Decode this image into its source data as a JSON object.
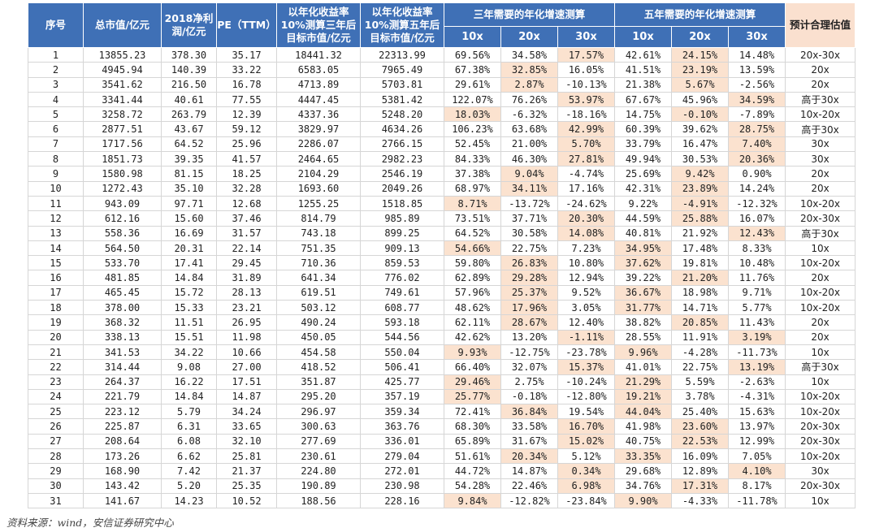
{
  "headers": {
    "seq": "序号",
    "mcap": "总市值/亿元",
    "profit": "2018净利润/亿元",
    "pe": "PE（TTM）",
    "target3": "以年化收益率10%测算三年后目标市值/亿元",
    "target5": "以年化收益率10%测算五年后目标市值/亿元",
    "group3": "三年需要的年化增速测算",
    "group5": "五年需要的年化增速测算",
    "sub": [
      "10x",
      "20x",
      "30x",
      "10x",
      "20x",
      "30x"
    ],
    "estimate": "预计合理估值"
  },
  "rows": [
    [
      "1",
      "13855.23",
      "378.30",
      "35.17",
      "18441.32",
      "22313.99",
      "69.56%",
      "34.58%",
      "17.57%",
      "42.61%",
      "24.15%",
      "14.48%",
      "20x-30x"
    ],
    [
      "2",
      "4945.94",
      "140.39",
      "33.22",
      "6583.05",
      "7965.49",
      "67.38%",
      "32.85%",
      "16.05%",
      "41.51%",
      "23.19%",
      "13.59%",
      "20x"
    ],
    [
      "3",
      "3541.62",
      "216.50",
      "16.78",
      "4713.89",
      "5703.81",
      "29.61%",
      "2.87%",
      "-10.13%",
      "21.38%",
      "5.67%",
      "-2.56%",
      "20x"
    ],
    [
      "4",
      "3341.44",
      "40.61",
      "77.55",
      "4447.45",
      "5381.42",
      "122.07%",
      "76.26%",
      "53.97%",
      "67.67%",
      "45.96%",
      "34.59%",
      "高于30x"
    ],
    [
      "5",
      "3258.72",
      "263.79",
      "12.39",
      "4337.36",
      "5248.20",
      "18.03%",
      "-6.32%",
      "-18.16%",
      "14.75%",
      "-0.10%",
      "-7.89%",
      "10x-20x"
    ],
    [
      "6",
      "2877.51",
      "43.67",
      "59.12",
      "3829.97",
      "4634.26",
      "106.23%",
      "63.68%",
      "42.99%",
      "60.39%",
      "39.62%",
      "28.75%",
      "高于30x"
    ],
    [
      "7",
      "1717.56",
      "64.52",
      "25.96",
      "2286.07",
      "2766.15",
      "52.45%",
      "21.00%",
      "5.70%",
      "33.79%",
      "16.47%",
      "7.40%",
      "30x"
    ],
    [
      "8",
      "1851.73",
      "39.35",
      "41.57",
      "2464.65",
      "2982.23",
      "84.33%",
      "46.30%",
      "27.81%",
      "49.94%",
      "30.53%",
      "20.36%",
      "30x"
    ],
    [
      "9",
      "1580.98",
      "81.15",
      "18.25",
      "2104.29",
      "2546.19",
      "37.38%",
      "9.04%",
      "-4.74%",
      "25.69%",
      "9.42%",
      "0.90%",
      "20x"
    ],
    [
      "10",
      "1272.43",
      "35.10",
      "32.28",
      "1693.60",
      "2049.26",
      "68.97%",
      "34.11%",
      "17.16%",
      "42.31%",
      "23.89%",
      "14.24%",
      "20x"
    ],
    [
      "11",
      "943.09",
      "97.71",
      "12.68",
      "1255.25",
      "1518.85",
      "8.71%",
      "-13.72%",
      "-24.62%",
      "9.22%",
      "-4.91%",
      "-12.32%",
      "10x-20x"
    ],
    [
      "12",
      "612.16",
      "15.60",
      "37.46",
      "814.79",
      "985.89",
      "73.51%",
      "37.71%",
      "20.30%",
      "44.59%",
      "25.88%",
      "16.07%",
      "20x-30x"
    ],
    [
      "13",
      "558.36",
      "16.69",
      "31.57",
      "743.18",
      "899.25",
      "64.52%",
      "30.58%",
      "14.08%",
      "40.81%",
      "21.92%",
      "12.43%",
      "高于30x"
    ],
    [
      "14",
      "564.50",
      "20.31",
      "22.14",
      "751.35",
      "909.13",
      "54.66%",
      "22.75%",
      "7.23%",
      "34.95%",
      "17.48%",
      "8.33%",
      "10x"
    ],
    [
      "15",
      "533.70",
      "17.41",
      "29.45",
      "710.36",
      "859.53",
      "59.80%",
      "26.83%",
      "10.80%",
      "37.62%",
      "19.81%",
      "10.48%",
      "10x-20x"
    ],
    [
      "16",
      "481.85",
      "14.84",
      "31.89",
      "641.34",
      "776.02",
      "62.89%",
      "29.28%",
      "12.94%",
      "39.22%",
      "21.20%",
      "11.76%",
      "20x"
    ],
    [
      "17",
      "465.45",
      "15.72",
      "28.13",
      "619.51",
      "749.61",
      "57.96%",
      "25.37%",
      "9.52%",
      "36.67%",
      "18.98%",
      "9.71%",
      "10x-20x"
    ],
    [
      "18",
      "378.00",
      "15.33",
      "23.21",
      "503.12",
      "608.77",
      "48.62%",
      "17.96%",
      "3.05%",
      "31.77%",
      "14.71%",
      "5.77%",
      "10x-20x"
    ],
    [
      "19",
      "368.32",
      "11.51",
      "26.95",
      "490.24",
      "593.18",
      "62.11%",
      "28.67%",
      "12.40%",
      "38.82%",
      "20.85%",
      "11.43%",
      "20x"
    ],
    [
      "20",
      "338.13",
      "15.51",
      "11.98",
      "450.05",
      "544.56",
      "42.62%",
      "13.20%",
      "-1.11%",
      "28.55%",
      "11.91%",
      "3.19%",
      "20x"
    ],
    [
      "21",
      "341.53",
      "34.22",
      "10.66",
      "454.58",
      "550.04",
      "9.93%",
      "-12.75%",
      "-23.78%",
      "9.96%",
      "-4.28%",
      "-11.73%",
      "10x"
    ],
    [
      "22",
      "314.44",
      "9.08",
      "27.00",
      "418.52",
      "506.41",
      "66.40%",
      "32.07%",
      "15.37%",
      "41.01%",
      "22.75%",
      "13.19%",
      "高于30x"
    ],
    [
      "23",
      "264.37",
      "16.22",
      "17.51",
      "351.87",
      "425.77",
      "29.46%",
      "2.75%",
      "-10.24%",
      "21.29%",
      "5.59%",
      "-2.63%",
      "10x"
    ],
    [
      "24",
      "221.79",
      "14.84",
      "14.87",
      "295.20",
      "357.19",
      "25.77%",
      "-0.18%",
      "-12.80%",
      "19.21%",
      "3.78%",
      "-4.31%",
      "10x-20x"
    ],
    [
      "25",
      "223.12",
      "5.79",
      "34.24",
      "296.97",
      "359.34",
      "72.41%",
      "36.84%",
      "19.54%",
      "44.04%",
      "25.40%",
      "15.63%",
      "10x-20x"
    ],
    [
      "26",
      "225.87",
      "6.31",
      "33.65",
      "300.63",
      "363.76",
      "68.30%",
      "33.58%",
      "16.70%",
      "41.98%",
      "23.60%",
      "13.97%",
      "20x-30x"
    ],
    [
      "27",
      "208.64",
      "6.08",
      "32.10",
      "277.69",
      "336.01",
      "65.89%",
      "31.67%",
      "15.02%",
      "40.75%",
      "22.53%",
      "12.99%",
      "20x-30x"
    ],
    [
      "28",
      "173.26",
      "6.62",
      "25.81",
      "230.61",
      "279.04",
      "51.61%",
      "20.34%",
      "5.12%",
      "33.35%",
      "16.09%",
      "7.05%",
      "10x-20x"
    ],
    [
      "29",
      "168.90",
      "7.42",
      "21.37",
      "224.80",
      "272.01",
      "44.72%",
      "14.87%",
      "0.34%",
      "29.68%",
      "12.89%",
      "4.10%",
      "30x"
    ],
    [
      "30",
      "143.42",
      "5.20",
      "25.35",
      "190.89",
      "230.98",
      "54.28%",
      "22.46%",
      "6.98%",
      "34.76%",
      "17.31%",
      "8.17%",
      "20x-30x"
    ],
    [
      "31",
      "141.67",
      "14.23",
      "10.52",
      "188.56",
      "228.16",
      "9.84%",
      "-12.82%",
      "-23.84%",
      "9.90%",
      "-4.33%",
      "-11.78%",
      "10x"
    ]
  ],
  "highlight_col_by_row": {
    "group3": [
      8,
      7,
      7,
      8,
      6,
      8,
      8,
      8,
      7,
      7,
      6,
      8,
      8,
      6,
      7,
      7,
      7,
      7,
      7,
      8,
      6,
      8,
      6,
      6,
      7,
      8,
      8,
      7,
      8,
      8,
      6
    ],
    "group5": [
      10,
      10,
      10,
      11,
      10,
      11,
      11,
      11,
      10,
      10,
      10,
      10,
      11,
      9,
      9,
      10,
      9,
      9,
      10,
      11,
      9,
      11,
      9,
      9,
      9,
      10,
      10,
      9,
      11,
      10,
      9
    ]
  },
  "colors": {
    "header_bg": "#3f70b6",
    "estimate_header_bg": "#fae0cf",
    "highlight": "#fbe2cf"
  },
  "source": "资料来源：wind，安信证券研究中心"
}
